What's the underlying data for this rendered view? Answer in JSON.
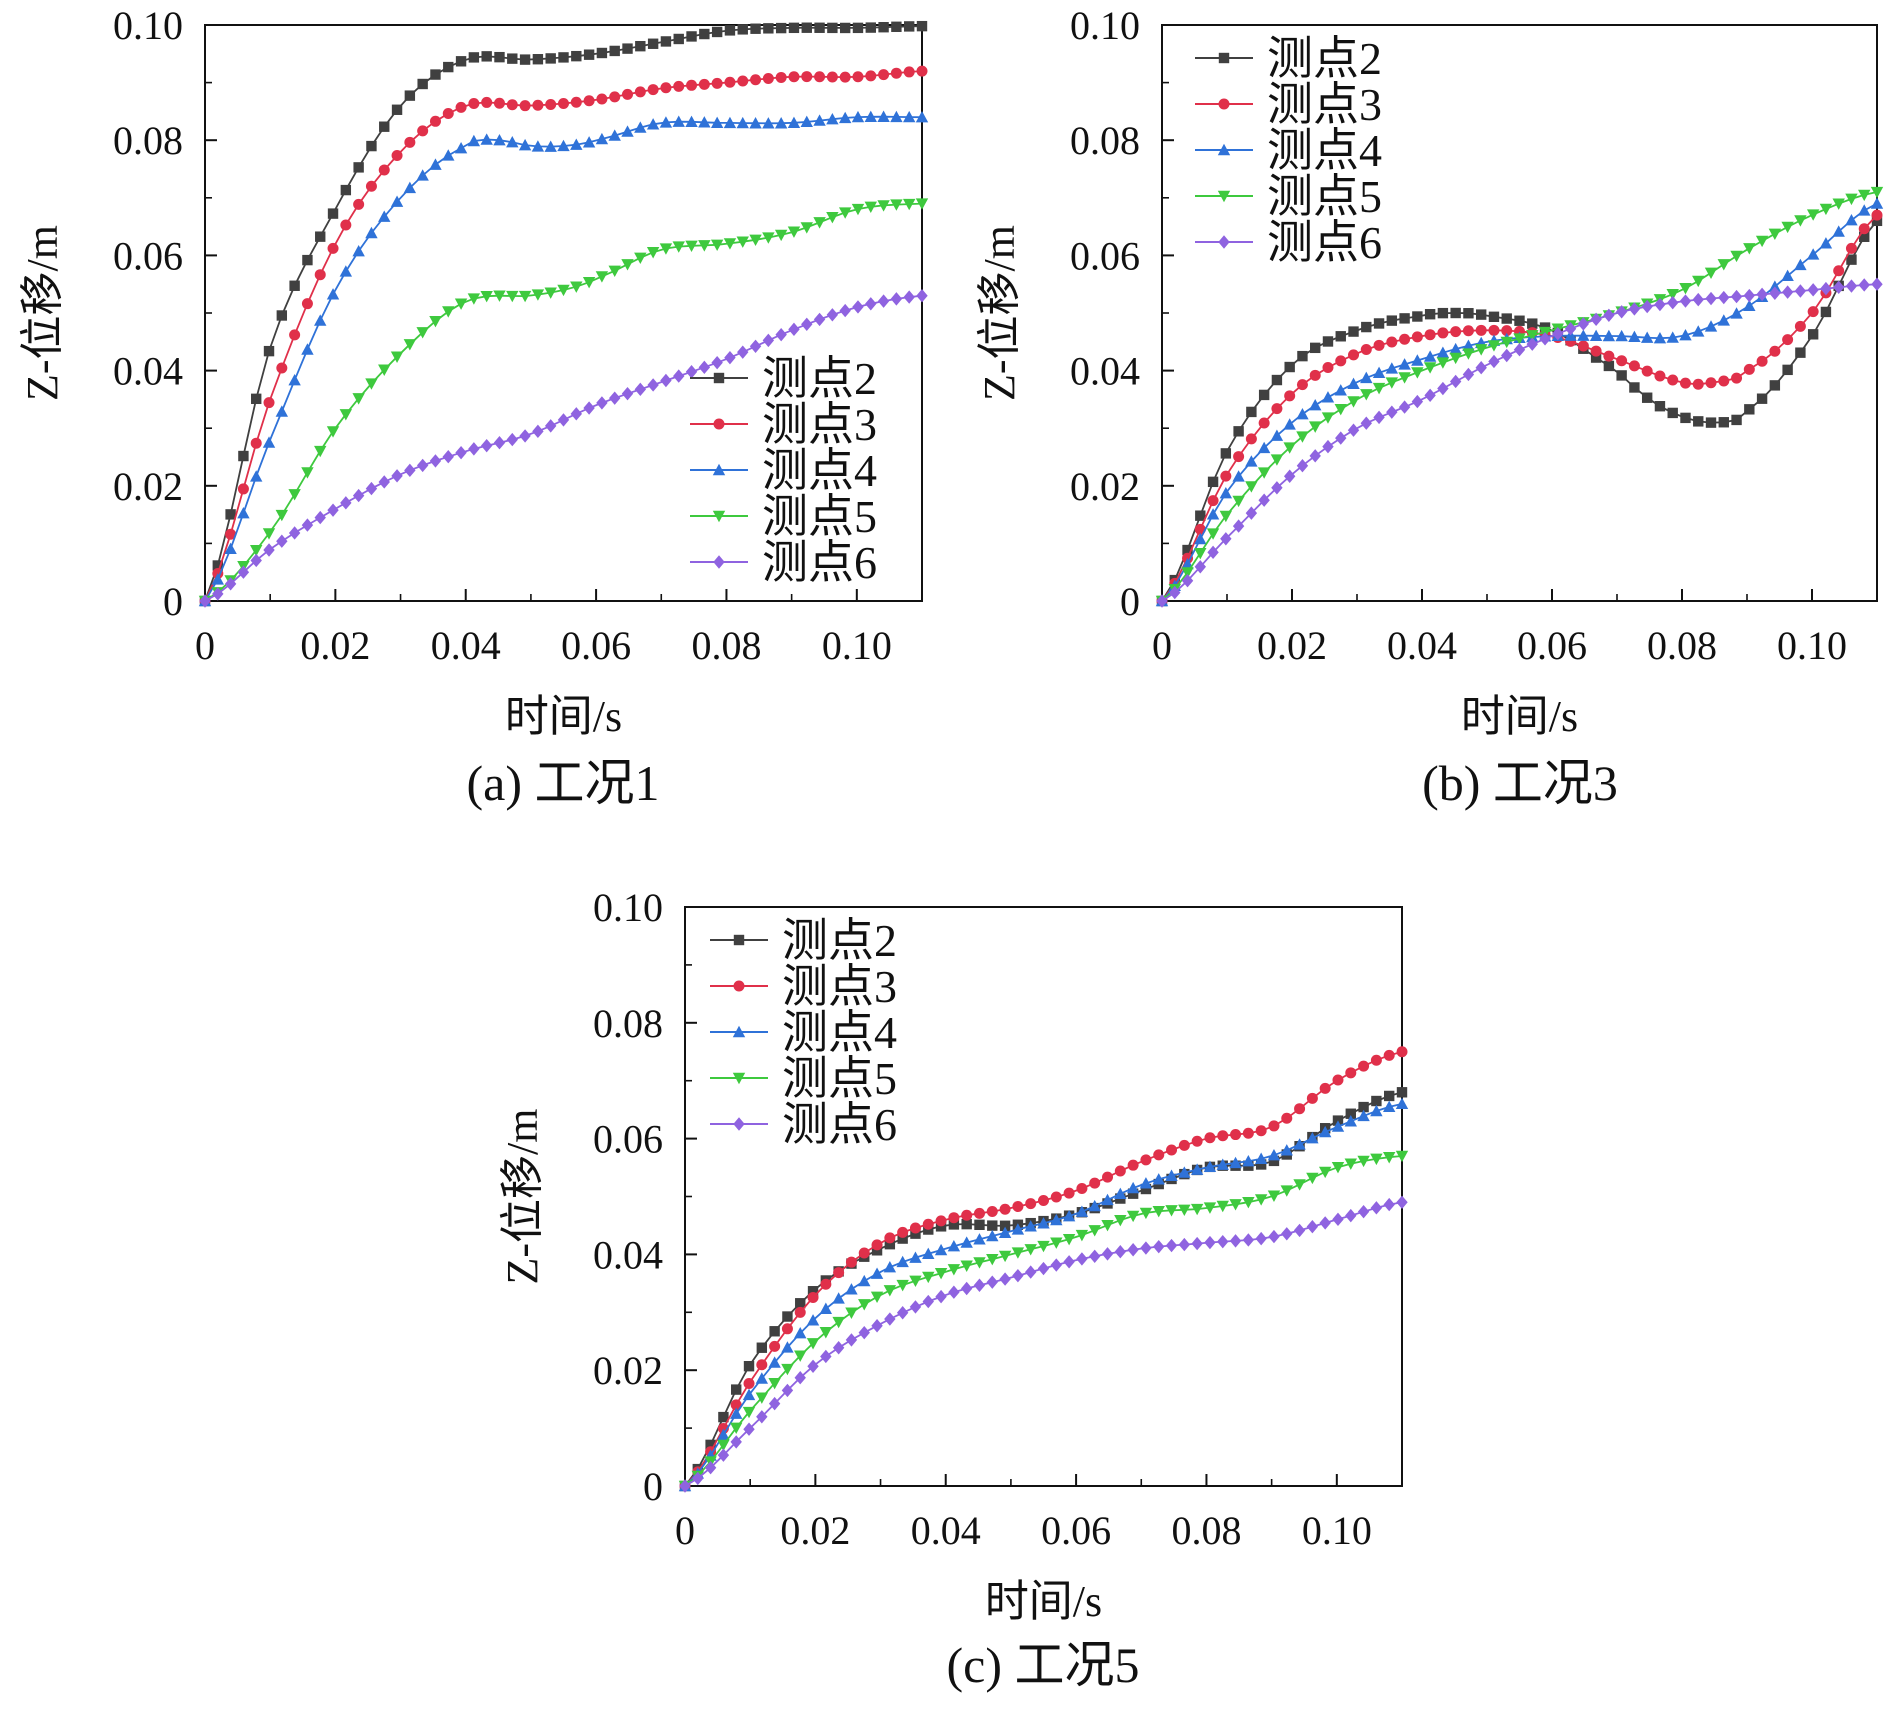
{
  "figure": {
    "series_colors": {
      "测点2": "#404040",
      "测点3": "#e0304a",
      "测点4": "#2f72d8",
      "测点5": "#3ec93e",
      "测点6": "#8f63e0"
    },
    "series_markers": {
      "测点2": "square",
      "测点3": "circle",
      "测点4": "triangle-up",
      "测点5": "triangle-down",
      "测点6": "diamond"
    }
  },
  "chart_data": [
    {
      "type": "line",
      "title": "(a) 工况1",
      "xlabel": "时间/s",
      "ylabel": "Z-位移/m",
      "xlim": [
        0,
        0.11
      ],
      "ylim": [
        0,
        0.1
      ],
      "xticks": [
        0,
        0.02,
        0.04,
        0.06,
        0.08,
        0.1
      ],
      "xtick_labels": [
        "0",
        "0.02",
        "0.04",
        "0.06",
        "0.08",
        "0.10"
      ],
      "yticks": [
        0,
        0.02,
        0.04,
        0.06,
        0.08,
        0.1
      ],
      "ytick_labels": [
        "0",
        "0.02",
        "0.04",
        "0.06",
        "0.08",
        "0.10"
      ],
      "grid": false,
      "legend": "lower-right",
      "series": [
        {
          "name": "测点2",
          "x": [
            0,
            0.01,
            0.02,
            0.03,
            0.04,
            0.05,
            0.06,
            0.07,
            0.08,
            0.09,
            0.1,
            0.11
          ],
          "y": [
            0,
            0.044,
            0.068,
            0.086,
            0.094,
            0.094,
            0.095,
            0.097,
            0.099,
            0.0995,
            0.0995,
            0.0998
          ]
        },
        {
          "name": "测点3",
          "x": [
            0,
            0.01,
            0.02,
            0.03,
            0.04,
            0.05,
            0.06,
            0.07,
            0.08,
            0.09,
            0.1,
            0.11
          ],
          "y": [
            0,
            0.035,
            0.062,
            0.078,
            0.086,
            0.086,
            0.087,
            0.089,
            0.09,
            0.091,
            0.091,
            0.092
          ]
        },
        {
          "name": "测点4",
          "x": [
            0,
            0.01,
            0.02,
            0.03,
            0.04,
            0.045,
            0.05,
            0.055,
            0.06,
            0.07,
            0.08,
            0.09,
            0.1,
            0.11
          ],
          "y": [
            0,
            0.028,
            0.054,
            0.07,
            0.079,
            0.08,
            0.079,
            0.079,
            0.08,
            0.083,
            0.083,
            0.083,
            0.084,
            0.084
          ]
        },
        {
          "name": "测点5",
          "x": [
            0,
            0.01,
            0.02,
            0.03,
            0.04,
            0.05,
            0.055,
            0.06,
            0.07,
            0.08,
            0.09,
            0.1,
            0.11
          ],
          "y": [
            0,
            0.012,
            0.03,
            0.043,
            0.052,
            0.053,
            0.054,
            0.056,
            0.061,
            0.062,
            0.064,
            0.068,
            0.069
          ]
        },
        {
          "name": "测点6",
          "x": [
            0,
            0.01,
            0.02,
            0.03,
            0.04,
            0.05,
            0.06,
            0.07,
            0.08,
            0.09,
            0.1,
            0.11
          ],
          "y": [
            0,
            0.009,
            0.016,
            0.022,
            0.026,
            0.029,
            0.034,
            0.038,
            0.042,
            0.047,
            0.051,
            0.053
          ]
        }
      ]
    },
    {
      "type": "line",
      "title": "(b) 工况3",
      "xlabel": "时间/s",
      "ylabel": "Z-位移/m",
      "xlim": [
        0,
        0.11
      ],
      "ylim": [
        0,
        0.1
      ],
      "xticks": [
        0,
        0.02,
        0.04,
        0.06,
        0.08,
        0.1
      ],
      "xtick_labels": [
        "0",
        "0.02",
        "0.04",
        "0.06",
        "0.08",
        "0.10"
      ],
      "yticks": [
        0,
        0.02,
        0.04,
        0.06,
        0.08,
        0.1
      ],
      "ytick_labels": [
        "0",
        "0.02",
        "0.04",
        "0.06",
        "0.08",
        "0.10"
      ],
      "grid": false,
      "legend": "top-left",
      "series": [
        {
          "name": "测点2",
          "x": [
            0,
            0.01,
            0.02,
            0.03,
            0.04,
            0.045,
            0.05,
            0.06,
            0.07,
            0.075,
            0.08,
            0.085,
            0.09,
            0.1,
            0.11
          ],
          "y": [
            0,
            0.026,
            0.041,
            0.047,
            0.0495,
            0.05,
            0.0495,
            0.047,
            0.04,
            0.035,
            0.032,
            0.031,
            0.033,
            0.046,
            0.066
          ]
        },
        {
          "name": "测点3",
          "x": [
            0,
            0.01,
            0.02,
            0.03,
            0.04,
            0.05,
            0.06,
            0.07,
            0.08,
            0.085,
            0.09,
            0.1,
            0.11
          ],
          "y": [
            0,
            0.022,
            0.036,
            0.043,
            0.046,
            0.047,
            0.046,
            0.042,
            0.038,
            0.038,
            0.04,
            0.05,
            0.067
          ]
        },
        {
          "name": "测点4",
          "x": [
            0,
            0.01,
            0.02,
            0.03,
            0.04,
            0.05,
            0.06,
            0.07,
            0.08,
            0.09,
            0.1,
            0.11
          ],
          "y": [
            0,
            0.019,
            0.031,
            0.038,
            0.042,
            0.045,
            0.046,
            0.046,
            0.046,
            0.051,
            0.06,
            0.069
          ]
        },
        {
          "name": "测点5",
          "x": [
            0,
            0.01,
            0.02,
            0.03,
            0.04,
            0.05,
            0.06,
            0.07,
            0.08,
            0.09,
            0.1,
            0.11
          ],
          "y": [
            0,
            0.015,
            0.027,
            0.035,
            0.04,
            0.044,
            0.047,
            0.05,
            0.054,
            0.061,
            0.067,
            0.071
          ]
        },
        {
          "name": "测点6",
          "x": [
            0,
            0.01,
            0.02,
            0.03,
            0.04,
            0.05,
            0.06,
            0.07,
            0.08,
            0.09,
            0.1,
            0.11
          ],
          "y": [
            0,
            0.011,
            0.022,
            0.03,
            0.035,
            0.041,
            0.046,
            0.05,
            0.052,
            0.053,
            0.054,
            0.055
          ]
        }
      ]
    },
    {
      "type": "line",
      "title": "(c) 工况5",
      "xlabel": "时间/s",
      "ylabel": "Z-位移/m",
      "xlim": [
        0,
        0.11
      ],
      "ylim": [
        0,
        0.1
      ],
      "xticks": [
        0,
        0.02,
        0.04,
        0.06,
        0.08,
        0.1
      ],
      "xtick_labels": [
        "0",
        "0.02",
        "0.04",
        "0.06",
        "0.08",
        "0.10"
      ],
      "yticks": [
        0,
        0.02,
        0.04,
        0.06,
        0.08,
        0.1
      ],
      "ytick_labels": [
        "0",
        "0.02",
        "0.04",
        "0.06",
        "0.08",
        "0.10"
      ],
      "grid": false,
      "legend": "top-left",
      "series": [
        {
          "name": "测点2",
          "x": [
            0,
            0.01,
            0.02,
            0.03,
            0.04,
            0.05,
            0.06,
            0.07,
            0.08,
            0.09,
            0.1,
            0.11
          ],
          "y": [
            0,
            0.021,
            0.034,
            0.041,
            0.045,
            0.045,
            0.047,
            0.051,
            0.055,
            0.056,
            0.063,
            0.068
          ]
        },
        {
          "name": "测点3",
          "x": [
            0,
            0.01,
            0.02,
            0.03,
            0.04,
            0.05,
            0.06,
            0.07,
            0.08,
            0.09,
            0.1,
            0.11
          ],
          "y": [
            0,
            0.018,
            0.033,
            0.042,
            0.046,
            0.048,
            0.051,
            0.056,
            0.06,
            0.062,
            0.07,
            0.075
          ]
        },
        {
          "name": "测点4",
          "x": [
            0,
            0.01,
            0.02,
            0.03,
            0.04,
            0.05,
            0.06,
            0.07,
            0.08,
            0.09,
            0.1,
            0.11
          ],
          "y": [
            0,
            0.016,
            0.029,
            0.037,
            0.041,
            0.044,
            0.047,
            0.052,
            0.055,
            0.057,
            0.062,
            0.066
          ]
        },
        {
          "name": "测点5",
          "x": [
            0,
            0.01,
            0.02,
            0.03,
            0.04,
            0.05,
            0.06,
            0.07,
            0.08,
            0.09,
            0.1,
            0.11
          ],
          "y": [
            0,
            0.013,
            0.025,
            0.033,
            0.037,
            0.04,
            0.043,
            0.047,
            0.048,
            0.05,
            0.055,
            0.057
          ]
        },
        {
          "name": "测点6",
          "x": [
            0,
            0.01,
            0.02,
            0.03,
            0.04,
            0.05,
            0.06,
            0.07,
            0.08,
            0.09,
            0.1,
            0.11
          ],
          "y": [
            0,
            0.01,
            0.021,
            0.028,
            0.033,
            0.036,
            0.039,
            0.041,
            0.042,
            0.043,
            0.046,
            0.049
          ]
        }
      ]
    }
  ]
}
